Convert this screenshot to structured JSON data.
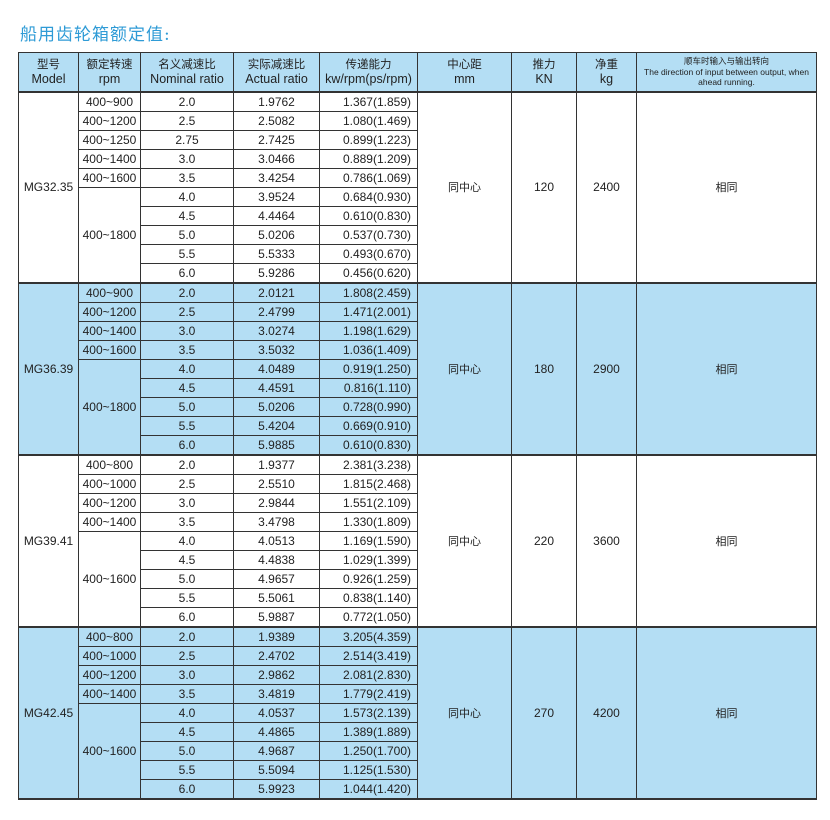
{
  "title": "船用齿轮箱额定值:",
  "headers": [
    {
      "cn": "型号",
      "en": "Model"
    },
    {
      "cn": "额定转速",
      "en": "rpm"
    },
    {
      "cn": "名义减速比",
      "en": "Nominal ratio"
    },
    {
      "cn": "实际减速比",
      "en": "Actual ratio"
    },
    {
      "cn": "传递能力",
      "en": "kw/rpm(ps/rpm)"
    },
    {
      "cn": "中心距",
      "en": "mm"
    },
    {
      "cn": "推力",
      "en": "KN"
    },
    {
      "cn": "净重",
      "en": "kg"
    },
    {
      "cn": "顺车时输入与输出转向",
      "en": "The direction of input between output, when ahead running."
    }
  ],
  "colors": {
    "header_bg": "#b4def4",
    "row_highlight": "#b4def4",
    "title": "#2f9bd6"
  },
  "groups": [
    {
      "model": "MG32.35",
      "center": "同中心",
      "thrust": "120",
      "weight": "2400",
      "direction": "相同",
      "highlight": false,
      "rpm": [
        {
          "label": "400~900",
          "span": 1
        },
        {
          "label": "400~1200",
          "span": 1
        },
        {
          "label": "400~1250",
          "span": 1
        },
        {
          "label": "400~1400",
          "span": 1
        },
        {
          "label": "400~1600",
          "span": 1
        },
        {
          "label": "400~1800",
          "span": 5
        }
      ],
      "rows": [
        [
          "2.0",
          "1.9762",
          "1.367(1.859)"
        ],
        [
          "2.5",
          "2.5082",
          "1.080(1.469)"
        ],
        [
          "2.75",
          "2.7425",
          "0.899(1.223)"
        ],
        [
          "3.0",
          "3.0466",
          "0.889(1.209)"
        ],
        [
          "3.5",
          "3.4254",
          "0.786(1.069)"
        ],
        [
          "4.0",
          "3.9524",
          "0.684(0.930)"
        ],
        [
          "4.5",
          "4.4464",
          "0.610(0.830)"
        ],
        [
          "5.0",
          "5.0206",
          "0.537(0.730)"
        ],
        [
          "5.5",
          "5.5333",
          "0.493(0.670)"
        ],
        [
          "6.0",
          "5.9286",
          "0.456(0.620)"
        ]
      ]
    },
    {
      "model": "MG36.39",
      "center": "同中心",
      "thrust": "180",
      "weight": "2900",
      "direction": "相同",
      "highlight": true,
      "rpm": [
        {
          "label": "400~900",
          "span": 1
        },
        {
          "label": "400~1200",
          "span": 1
        },
        {
          "label": "400~1400",
          "span": 1
        },
        {
          "label": "400~1600",
          "span": 1
        },
        {
          "label": "400~1800",
          "span": 5
        }
      ],
      "rows": [
        [
          "2.0",
          "2.0121",
          "1.808(2.459)"
        ],
        [
          "2.5",
          "2.4799",
          "1.471(2.001)"
        ],
        [
          "3.0",
          "3.0274",
          "1.198(1.629)"
        ],
        [
          "3.5",
          "3.5032",
          "1.036(1.409)"
        ],
        [
          "4.0",
          "4.0489",
          "0.919(1.250)"
        ],
        [
          "4.5",
          "4.4591",
          "0.816(1.110)"
        ],
        [
          "5.0",
          "5.0206",
          "0.728(0.990)"
        ],
        [
          "5.5",
          "5.4204",
          "0.669(0.910)"
        ],
        [
          "6.0",
          "5.9885",
          "0.610(0.830)"
        ]
      ]
    },
    {
      "model": "MG39.41",
      "center": "同中心",
      "thrust": "220",
      "weight": "3600",
      "direction": "相同",
      "highlight": false,
      "rpm": [
        {
          "label": "400~800",
          "span": 1
        },
        {
          "label": "400~1000",
          "span": 1
        },
        {
          "label": "400~1200",
          "span": 1
        },
        {
          "label": "400~1400",
          "span": 1
        },
        {
          "label": "400~1600",
          "span": 5
        }
      ],
      "rows": [
        [
          "2.0",
          "1.9377",
          "2.381(3.238)"
        ],
        [
          "2.5",
          "2.5510",
          "1.815(2.468)"
        ],
        [
          "3.0",
          "2.9844",
          "1.551(2.109)"
        ],
        [
          "3.5",
          "3.4798",
          "1.330(1.809)"
        ],
        [
          "4.0",
          "4.0513",
          "1.169(1.590)"
        ],
        [
          "4.5",
          "4.4838",
          "1.029(1.399)"
        ],
        [
          "5.0",
          "4.9657",
          "0.926(1.259)"
        ],
        [
          "5.5",
          "5.5061",
          "0.838(1.140)"
        ],
        [
          "6.0",
          "5.9887",
          "0.772(1.050)"
        ]
      ]
    },
    {
      "model": "MG42.45",
      "center": "同中心",
      "thrust": "270",
      "weight": "4200",
      "direction": "相同",
      "highlight": true,
      "rpm": [
        {
          "label": "400~800",
          "span": 1
        },
        {
          "label": "400~1000",
          "span": 1
        },
        {
          "label": "400~1200",
          "span": 1
        },
        {
          "label": "400~1400",
          "span": 1
        },
        {
          "label": "400~1600",
          "span": 5
        }
      ],
      "rows": [
        [
          "2.0",
          "1.9389",
          "3.205(4.359)"
        ],
        [
          "2.5",
          "2.4702",
          "2.514(3.419)"
        ],
        [
          "3.0",
          "2.9862",
          "2.081(2.830)"
        ],
        [
          "3.5",
          "3.4819",
          "1.779(2.419)"
        ],
        [
          "4.0",
          "4.0537",
          "1.573(2.139)"
        ],
        [
          "4.5",
          "4.4865",
          "1.389(1.889)"
        ],
        [
          "5.0",
          "4.9687",
          "1.250(1.700)"
        ],
        [
          "5.5",
          "5.5094",
          "1.125(1.530)"
        ],
        [
          "6.0",
          "5.9923",
          "1.044(1.420)"
        ]
      ]
    }
  ]
}
